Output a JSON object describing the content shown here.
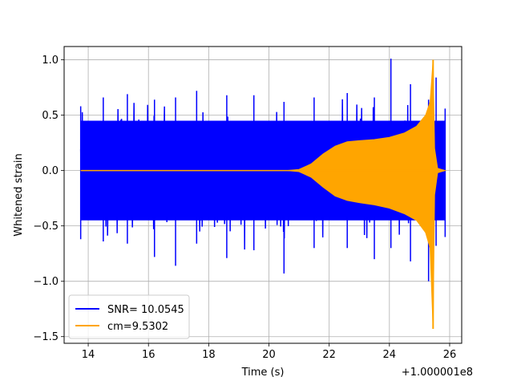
{
  "chart_data": {
    "type": "line",
    "title": "",
    "xlabel": "Time (s)",
    "ylabel": "Whitened strain",
    "x_offset_label": "+1.000001e8",
    "xlim": [
      13.2,
      26.4
    ],
    "ylim": [
      -1.56,
      1.12
    ],
    "xticks": [
      14,
      16,
      18,
      20,
      22,
      24,
      26
    ],
    "xtick_labels": [
      "14",
      "16",
      "18",
      "20",
      "22",
      "24",
      "26"
    ],
    "yticks": [
      -1.5,
      -1.0,
      -0.5,
      0.0,
      0.5,
      1.0
    ],
    "ytick_labels": [
      "−1.5",
      "−1.0",
      "−0.5",
      "0.0",
      "0.5",
      "1.0"
    ],
    "grid": true,
    "legend_position": "lower-left",
    "series": [
      {
        "name": "SNR= 10.0545",
        "color": "#0000ff",
        "kind": "noise",
        "x_range": [
          13.75,
          25.85
        ],
        "typical_amplitude": 0.45,
        "peak_envelope": [
          [
            13.75,
            0.58,
            -0.62
          ],
          [
            14.5,
            0.66,
            -0.64
          ],
          [
            15.3,
            0.69,
            -0.66
          ],
          [
            16.2,
            0.64,
            -0.78
          ],
          [
            16.9,
            0.66,
            -0.86
          ],
          [
            17.6,
            0.72,
            -0.66
          ],
          [
            18.6,
            0.68,
            -0.79
          ],
          [
            19.5,
            0.68,
            -0.72
          ],
          [
            20.5,
            0.62,
            -0.93
          ],
          [
            21.5,
            0.66,
            -0.7
          ],
          [
            22.6,
            0.7,
            -0.7
          ],
          [
            23.5,
            0.66,
            -0.8
          ],
          [
            24.05,
            1.01,
            -0.7
          ],
          [
            24.7,
            0.78,
            -0.82
          ],
          [
            25.3,
            0.64,
            -1.0
          ],
          [
            25.55,
            0.84,
            -0.68
          ],
          [
            25.85,
            0.56,
            -0.6
          ]
        ]
      },
      {
        "name": "cm=9.5302",
        "color": "#ffa500",
        "kind": "chirp",
        "envelope_upper": [
          [
            13.75,
            0.0
          ],
          [
            20.6,
            0.0
          ],
          [
            21.0,
            0.01
          ],
          [
            21.4,
            0.06
          ],
          [
            21.8,
            0.15
          ],
          [
            22.2,
            0.22
          ],
          [
            22.6,
            0.26
          ],
          [
            23.0,
            0.27
          ],
          [
            23.5,
            0.28
          ],
          [
            24.0,
            0.3
          ],
          [
            24.5,
            0.34
          ],
          [
            24.9,
            0.4
          ],
          [
            25.2,
            0.5
          ],
          [
            25.35,
            0.62
          ],
          [
            25.45,
            1.0
          ],
          [
            25.5,
            0.2
          ],
          [
            25.6,
            0.02
          ],
          [
            25.85,
            0.0
          ]
        ],
        "envelope_lower": [
          [
            13.75,
            0.0
          ],
          [
            20.6,
            0.0
          ],
          [
            21.0,
            -0.01
          ],
          [
            21.4,
            -0.06
          ],
          [
            21.8,
            -0.15
          ],
          [
            22.2,
            -0.23
          ],
          [
            22.6,
            -0.27
          ],
          [
            23.0,
            -0.29
          ],
          [
            23.5,
            -0.31
          ],
          [
            24.0,
            -0.34
          ],
          [
            24.5,
            -0.39
          ],
          [
            24.9,
            -0.45
          ],
          [
            25.2,
            -0.56
          ],
          [
            25.35,
            -0.7
          ],
          [
            25.45,
            -1.43
          ],
          [
            25.5,
            -0.22
          ],
          [
            25.6,
            -0.02
          ],
          [
            25.85,
            0.0
          ]
        ]
      }
    ]
  }
}
